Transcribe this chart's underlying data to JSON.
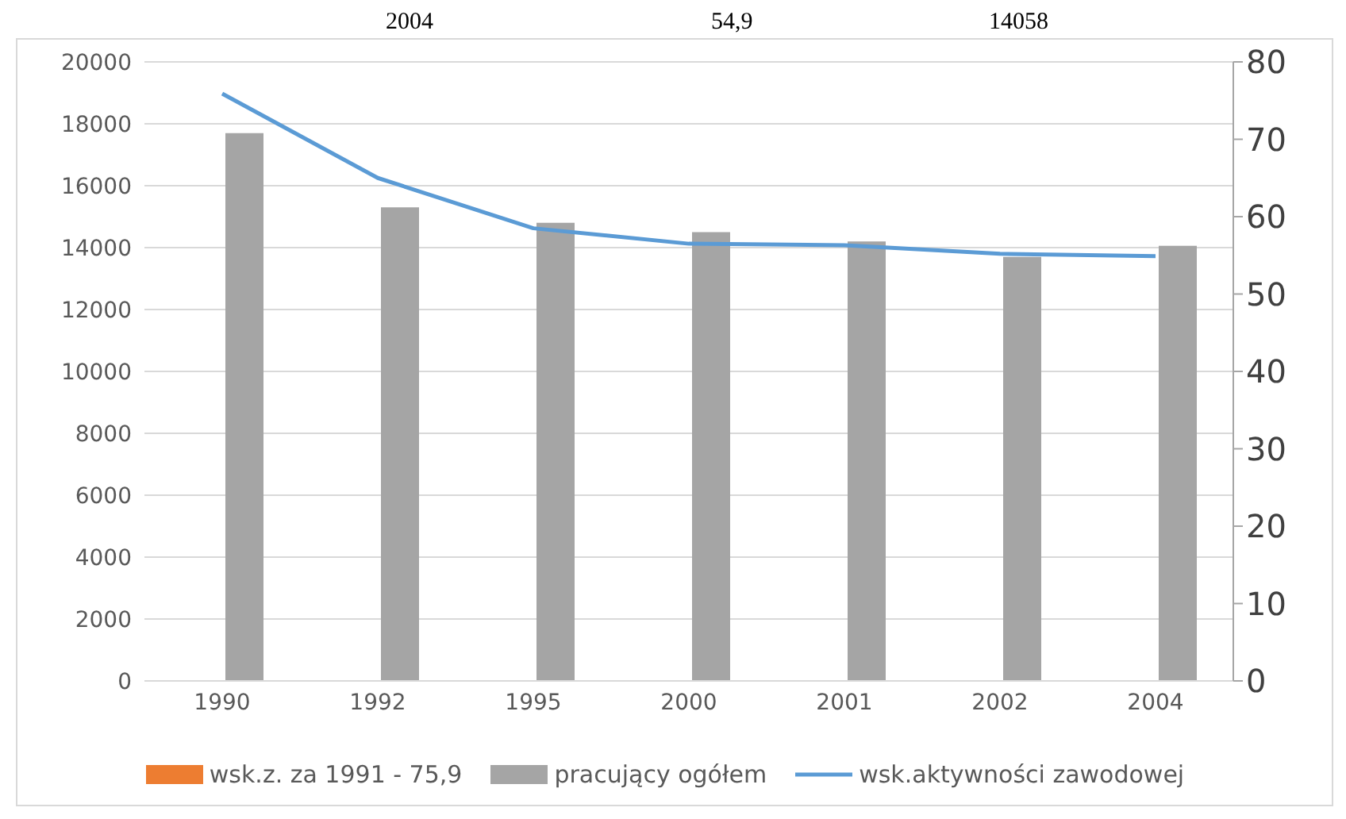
{
  "chart_data": {
    "type": "bar",
    "annotations": [
      "2004",
      "54,9",
      "14058"
    ],
    "categories": [
      "1990",
      "1992",
      "1995",
      "2000",
      "2001",
      "2002",
      "2004"
    ],
    "series": [
      {
        "name": "wsk.z. za 1991 - 75,9",
        "color": "#ed7d31",
        "values": [
          null,
          null,
          null,
          null,
          null,
          null,
          null
        ]
      },
      {
        "name": "pracujący ogółem",
        "color": "#a5a5a5",
        "values": [
          17700,
          15300,
          14800,
          14500,
          14200,
          13700,
          14058
        ]
      },
      {
        "name": "wsk.aktywności zawodowej",
        "type": "line",
        "axis": "y2",
        "color": "#5b9bd5",
        "values": [
          75.9,
          65,
          58.5,
          56.5,
          56.3,
          55.2,
          54.9
        ]
      }
    ],
    "ylim": [
      0,
      20000
    ],
    "yticks": [
      0,
      2000,
      4000,
      6000,
      8000,
      10000,
      12000,
      14000,
      16000,
      18000,
      20000
    ],
    "y2lim": [
      0,
      80
    ],
    "y2ticks": [
      0,
      10,
      20,
      30,
      40,
      50,
      60,
      70,
      80
    ],
    "grid": "y",
    "legend": "bottom",
    "marker": "none",
    "line_style": "solid"
  }
}
